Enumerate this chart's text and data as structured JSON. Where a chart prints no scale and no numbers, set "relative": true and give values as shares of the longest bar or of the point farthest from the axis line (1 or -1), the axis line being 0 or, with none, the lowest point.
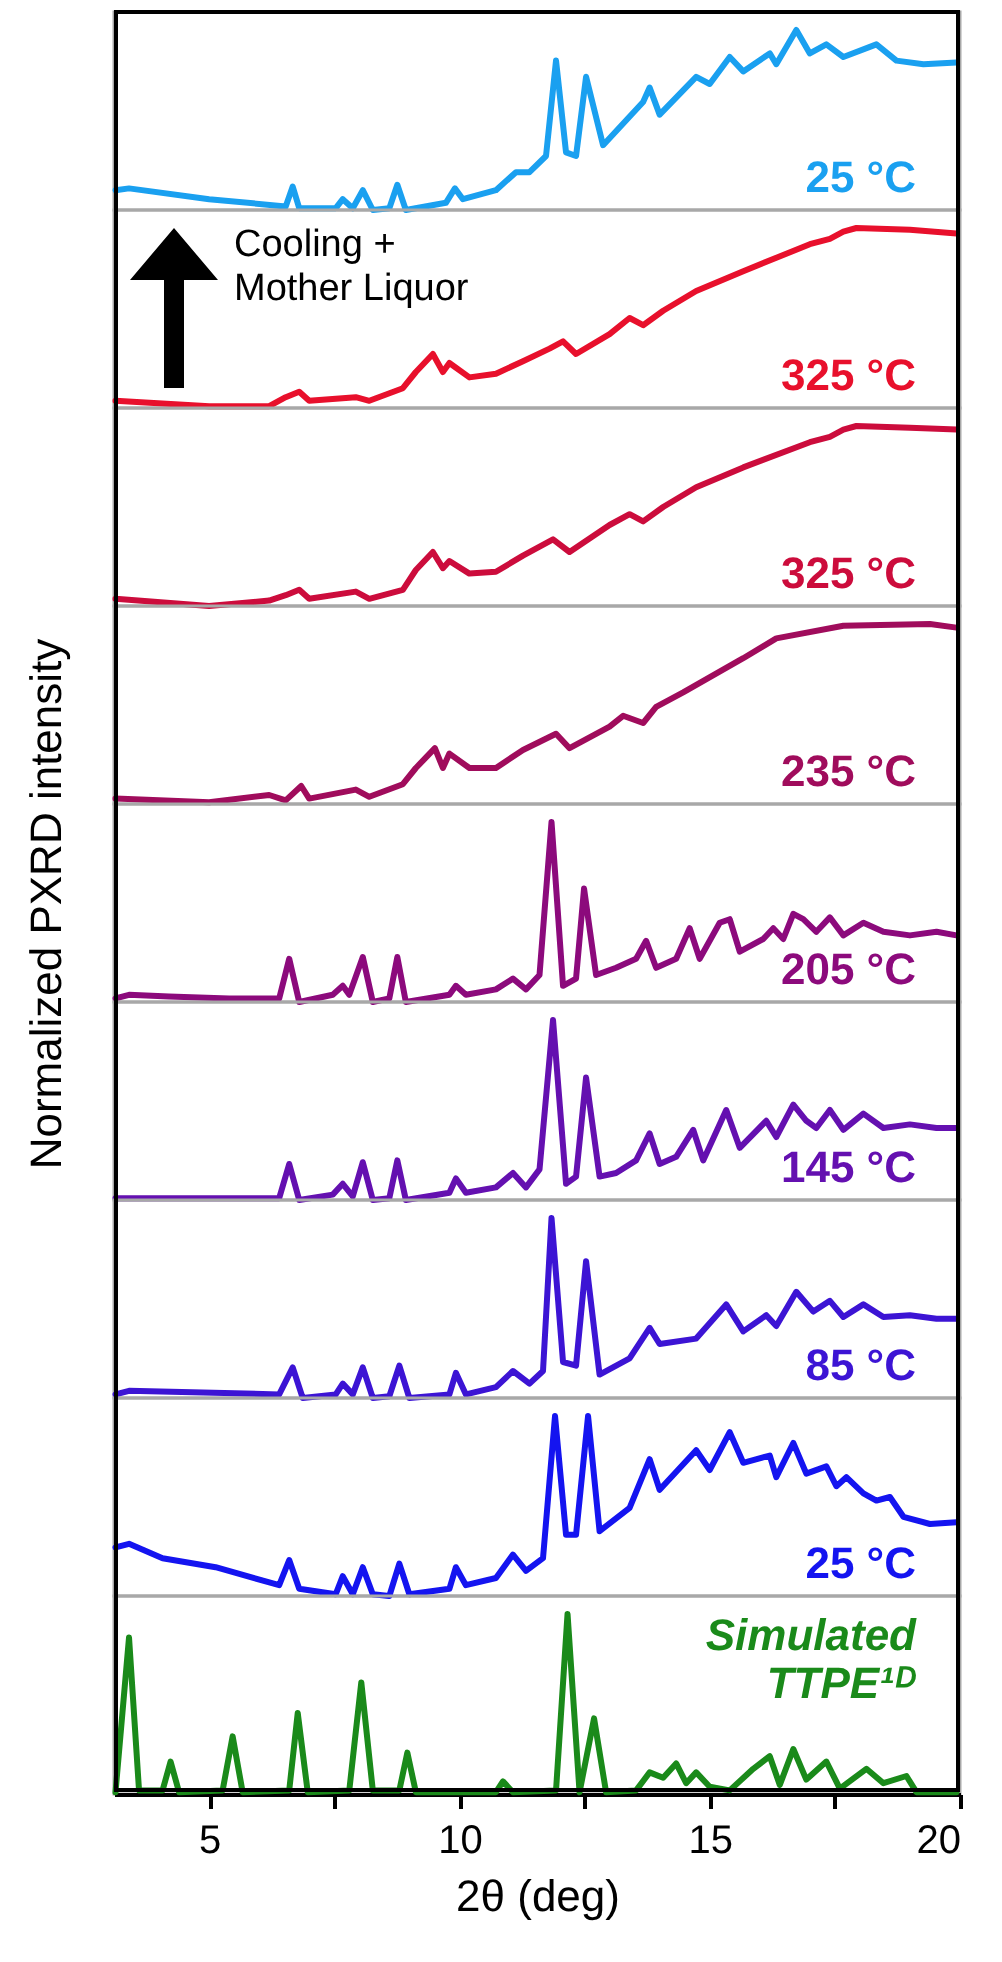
{
  "chart_data": [
    {
      "type": "line",
      "relative": true,
      "xlim": [
        3.1,
        20
      ],
      "tick_labels": false,
      "x": [
        3.13,
        3.4,
        5,
        6.53,
        6.67,
        6.8,
        7.53,
        7.67,
        7.87,
        8.07,
        8.27,
        8.6,
        8.76,
        8.93,
        9.73,
        9.91,
        10.07,
        10.73,
        11.13,
        11.4,
        11.73,
        11.93,
        12.13,
        12.33,
        12.53,
        12.87,
        13.67,
        13.8,
        14,
        14.73,
        15,
        15.4,
        15.67,
        16.2,
        16.33,
        16.73,
        17,
        17.33,
        17.67,
        18.33,
        18.73,
        19.27,
        19.93
      ],
      "series": [
        {
          "name": "25 °C",
          "color": "#1aa0f0",
          "values": [
            0.11,
            0.12,
            0.06,
            0.02,
            0.13,
            0.01,
            0.01,
            0.06,
            0.01,
            0.11,
            0,
            0.01,
            0.14,
            0,
            0.04,
            0.12,
            0.06,
            0.11,
            0.21,
            0.21,
            0.3,
            0.83,
            0.32,
            0.3,
            0.74,
            0.36,
            0.6,
            0.68,
            0.53,
            0.74,
            0.7,
            0.85,
            0.77,
            0.87,
            0.81,
            1,
            0.87,
            0.92,
            0.85,
            0.92,
            0.83,
            0.81,
            0.82
          ]
        }
      ]
    },
    {
      "type": "line",
      "relative": true,
      "xlim": [
        3.1,
        20
      ],
      "tick_labels": false,
      "annotations": [
        "Cooling +\nMother Liquor"
      ],
      "x": [
        3.13,
        5,
        6.2,
        6.53,
        6.8,
        7,
        7.93,
        8.2,
        8.87,
        9.13,
        9.47,
        9.67,
        9.8,
        10.2,
        10.73,
        11.27,
        11.8,
        12.07,
        12.33,
        13,
        13.4,
        13.67,
        14.07,
        14.73,
        15.67,
        17,
        17.4,
        17.67,
        17.93,
        19,
        19.93
      ],
      "series": [
        {
          "name": "325 °C",
          "color": "#e8102c",
          "values": [
            0.04,
            0.01,
            0.01,
            0.06,
            0.09,
            0.04,
            0.06,
            0.04,
            0.11,
            0.2,
            0.3,
            0.2,
            0.25,
            0.17,
            0.19,
            0.26,
            0.33,
            0.37,
            0.3,
            0.41,
            0.5,
            0.46,
            0.54,
            0.65,
            0.76,
            0.91,
            0.94,
            0.98,
            1,
            0.99,
            0.97
          ]
        }
      ]
    },
    {
      "type": "line",
      "relative": true,
      "xlim": [
        3.1,
        20
      ],
      "tick_labels": false,
      "x": [
        3.13,
        5,
        6.2,
        6.53,
        6.8,
        7,
        7.93,
        8.2,
        8.87,
        9.13,
        9.47,
        9.67,
        9.8,
        10.2,
        10.73,
        11.27,
        11.87,
        12.2,
        13,
        13.4,
        13.67,
        14.07,
        14.73,
        15.67,
        17,
        17.4,
        17.67,
        17.93,
        19,
        19.93
      ],
      "series": [
        {
          "name": "325 °C",
          "color": "#cc0c3c",
          "values": [
            0.04,
            0,
            0.03,
            0.06,
            0.09,
            0.04,
            0.08,
            0.04,
            0.09,
            0.2,
            0.3,
            0.21,
            0.25,
            0.18,
            0.19,
            0.28,
            0.37,
            0.3,
            0.45,
            0.51,
            0.47,
            0.55,
            0.66,
            0.77,
            0.91,
            0.94,
            0.98,
            1,
            0.99,
            0.98
          ]
        }
      ]
    },
    {
      "type": "line",
      "relative": true,
      "xlim": [
        3.1,
        20
      ],
      "tick_labels": false,
      "x": [
        3.13,
        5,
        6.2,
        6.53,
        6.84,
        7,
        7.93,
        8.2,
        8.87,
        9.13,
        9.51,
        9.67,
        9.8,
        10.2,
        10.73,
        11.27,
        11.93,
        12.2,
        13,
        13.27,
        13.67,
        13.93,
        14.47,
        15.67,
        16.33,
        17.67,
        19.4,
        19.93
      ],
      "series": [
        {
          "name": "235 °C",
          "color": "#a00c5c",
          "values": [
            0.03,
            0.01,
            0.05,
            0.02,
            0.1,
            0.03,
            0.08,
            0.04,
            0.11,
            0.2,
            0.31,
            0.2,
            0.28,
            0.2,
            0.2,
            0.3,
            0.39,
            0.31,
            0.43,
            0.49,
            0.45,
            0.54,
            0.62,
            0.81,
            0.92,
            0.99,
            1,
            0.98
          ]
        }
      ]
    },
    {
      "type": "line",
      "relative": true,
      "xlim": [
        3.1,
        20
      ],
      "tick_labels": false,
      "ylabel": "Normalized PXRD intensity",
      "x": [
        3.13,
        3.4,
        4.2,
        5.4,
        6.4,
        6.6,
        6.8,
        7.47,
        7.67,
        7.8,
        8.07,
        8.27,
        8.6,
        8.76,
        8.93,
        9.8,
        9.93,
        10.13,
        10.73,
        11.07,
        11.33,
        11.6,
        11.84,
        12.07,
        12.33,
        12.49,
        12.73,
        13.13,
        13.53,
        13.73,
        13.93,
        14.33,
        14.6,
        14.8,
        15.2,
        15.4,
        15.6,
        16.07,
        16.27,
        16.47,
        16.67,
        16.87,
        17.13,
        17.4,
        17.67,
        18.07,
        18.47,
        19,
        19.53,
        19.93
      ],
      "series": [
        {
          "name": "205 °C",
          "color": "#8c0a7c",
          "values": [
            0.02,
            0.04,
            0.03,
            0.02,
            0.02,
            0.24,
            0,
            0.04,
            0.09,
            0.04,
            0.25,
            0,
            0.02,
            0.25,
            0,
            0.04,
            0.09,
            0.04,
            0.07,
            0.13,
            0.07,
            0.15,
            1,
            0.09,
            0.13,
            0.63,
            0.15,
            0.19,
            0.24,
            0.34,
            0.19,
            0.24,
            0.41,
            0.24,
            0.44,
            0.46,
            0.28,
            0.35,
            0.41,
            0.35,
            0.49,
            0.46,
            0.39,
            0.47,
            0.37,
            0.44,
            0.39,
            0.37,
            0.39,
            0.37
          ]
        }
      ]
    },
    {
      "type": "line",
      "relative": true,
      "xlim": [
        3.1,
        20
      ],
      "tick_labels": false,
      "x": [
        3.13,
        6.4,
        6.6,
        6.8,
        7.47,
        7.67,
        7.87,
        8.07,
        8.27,
        8.6,
        8.76,
        8.93,
        9.8,
        9.93,
        10.13,
        10.73,
        11.07,
        11.33,
        11.6,
        11.87,
        12.13,
        12.33,
        12.53,
        12.8,
        13.13,
        13.53,
        13.8,
        14,
        14.33,
        14.67,
        14.87,
        15.33,
        15.6,
        16.13,
        16.33,
        16.67,
        16.93,
        17.13,
        17.4,
        17.67,
        18.07,
        18.47,
        19,
        19.53,
        19.93
      ],
      "series": [
        {
          "name": "145 °C",
          "color": "#6410b0",
          "values": [
            0.01,
            0.01,
            0.2,
            0,
            0.03,
            0.09,
            0.02,
            0.21,
            0,
            0.01,
            0.22,
            0,
            0.04,
            0.12,
            0.04,
            0.07,
            0.15,
            0.07,
            0.17,
            1,
            0.09,
            0.13,
            0.68,
            0.13,
            0.15,
            0.22,
            0.37,
            0.2,
            0.24,
            0.39,
            0.22,
            0.5,
            0.29,
            0.44,
            0.35,
            0.53,
            0.44,
            0.4,
            0.5,
            0.39,
            0.48,
            0.4,
            0.42,
            0.4,
            0.4
          ]
        }
      ]
    },
    {
      "type": "line",
      "relative": true,
      "xlim": [
        3.1,
        20
      ],
      "tick_labels": false,
      "x": [
        3.13,
        3.4,
        6.4,
        6.67,
        6.87,
        7.53,
        7.67,
        7.87,
        8.07,
        8.27,
        8.6,
        8.8,
        9,
        9.8,
        9.93,
        10.13,
        10.73,
        11.07,
        11.4,
        11.67,
        11.84,
        12.07,
        12.33,
        12.53,
        12.8,
        13.4,
        13.8,
        14,
        14.73,
        15.33,
        15.67,
        16.13,
        16.33,
        16.73,
        17.07,
        17.4,
        17.67,
        18.07,
        18.47,
        19,
        19.53,
        19.93
      ],
      "series": [
        {
          "name": "85 °C",
          "color": "#3c14d4",
          "values": [
            0.02,
            0.04,
            0.02,
            0.17,
            0,
            0.02,
            0.08,
            0.02,
            0.17,
            0,
            0.01,
            0.18,
            0,
            0.02,
            0.14,
            0.02,
            0.06,
            0.15,
            0.08,
            0.15,
            1,
            0.2,
            0.18,
            0.76,
            0.13,
            0.22,
            0.39,
            0.3,
            0.33,
            0.52,
            0.37,
            0.46,
            0.4,
            0.59,
            0.48,
            0.54,
            0.45,
            0.52,
            0.45,
            0.46,
            0.44,
            0.44
          ]
        }
      ]
    },
    {
      "type": "line",
      "relative": true,
      "xlim": [
        3.1,
        20
      ],
      "tick_labels": false,
      "x": [
        3.13,
        3.4,
        4.07,
        5.13,
        6.4,
        6.6,
        6.8,
        7.53,
        7.67,
        7.87,
        8.07,
        8.27,
        8.6,
        8.8,
        9,
        9.8,
        9.93,
        10.13,
        10.73,
        11.07,
        11.33,
        11.67,
        11.91,
        12.13,
        12.33,
        12.57,
        12.8,
        13.4,
        13.8,
        14,
        14.73,
        15,
        15.4,
        15.67,
        16.2,
        16.33,
        16.67,
        16.93,
        17.33,
        17.53,
        17.73,
        18.07,
        18.33,
        18.6,
        18.87,
        19.4,
        19.93
      ],
      "series": [
        {
          "name": "25 °C",
          "color": "#1414f0",
          "values": [
            0.27,
            0.29,
            0.21,
            0.16,
            0.06,
            0.2,
            0.04,
            0.01,
            0.11,
            0.01,
            0.16,
            0.01,
            0,
            0.18,
            0.01,
            0.04,
            0.16,
            0.06,
            0.1,
            0.23,
            0.14,
            0.21,
            1,
            0.34,
            0.34,
            1,
            0.36,
            0.49,
            0.76,
            0.59,
            0.81,
            0.7,
            0.91,
            0.74,
            0.78,
            0.66,
            0.85,
            0.68,
            0.72,
            0.61,
            0.66,
            0.57,
            0.53,
            0.55,
            0.44,
            0.4,
            0.41
          ]
        }
      ]
    },
    {
      "type": "line",
      "relative": true,
      "xlim": [
        3.1,
        20
      ],
      "tick_labels": "x",
      "xlabel": "2θ (deg)",
      "xticks": [
        5,
        {
          "value": 7.5,
          "label": null
        },
        10,
        {
          "value": 12.5,
          "label": null
        },
        15,
        {
          "value": 17.5,
          "label": null
        },
        20
      ],
      "x": [
        3.13,
        3.4,
        3.6,
        4.07,
        4.23,
        4.4,
        5.27,
        5.47,
        5.67,
        6.6,
        6.77,
        6.97,
        7.8,
        8.04,
        8.27,
        8.8,
        8.96,
        9.13,
        10.73,
        10.87,
        11.07,
        11.93,
        12.16,
        12.4,
        12.69,
        12.93,
        13.53,
        13.8,
        14.07,
        14.33,
        14.53,
        14.73,
        15,
        15.4,
        15.87,
        16.2,
        16.4,
        16.67,
        16.93,
        17.33,
        17.6,
        18.13,
        18.47,
        18.93,
        19.13,
        19.53,
        19.93
      ],
      "series": [
        {
          "name": "Simulated\nTTPE¹ᴰ",
          "color": "#1a8a1a",
          "values": [
            0.01,
            0.87,
            0.02,
            0.02,
            0.18,
            0.01,
            0.02,
            0.32,
            0.01,
            0.02,
            0.45,
            0.01,
            0.02,
            0.62,
            0.02,
            0.02,
            0.23,
            0.01,
            0.01,
            0.07,
            0.01,
            0.02,
            1,
            0.01,
            0.42,
            0.01,
            0.02,
            0.12,
            0.09,
            0.17,
            0.06,
            0.12,
            0.04,
            0.02,
            0.14,
            0.21,
            0.05,
            0.25,
            0.08,
            0.18,
            0.03,
            0.14,
            0.06,
            0.1,
            0.01,
            0.01,
            0.01
          ]
        }
      ]
    }
  ]
}
